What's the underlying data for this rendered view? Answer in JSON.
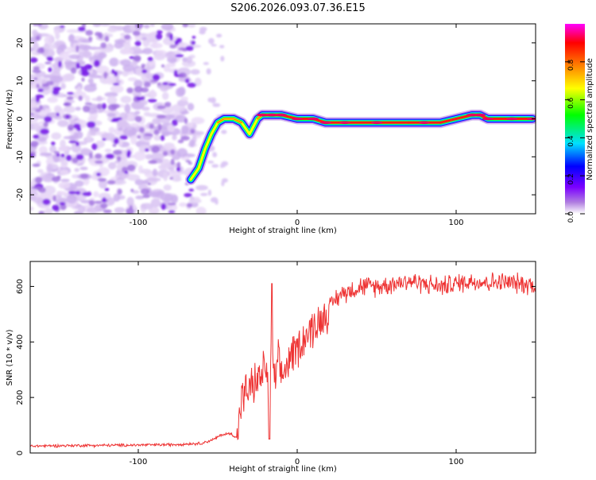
{
  "title": "S206.2026.093.07.36.E15",
  "chart_data": [
    {
      "type": "heatmap",
      "xlabel": "Height of straight line (km)",
      "ylabel": "Frequency (Hz)",
      "xlim": [
        -168,
        150
      ],
      "ylim": [
        -25,
        25
      ],
      "xticks": [
        -100,
        0,
        100
      ],
      "yticks": [
        -20,
        -10,
        0,
        10,
        20
      ],
      "colorbar": {
        "label": "Normalized spectral amplitude",
        "range": [
          0,
          1
        ],
        "ticks": [
          0.0,
          0.2,
          0.4,
          0.6,
          0.8
        ],
        "colors": [
          "#ffffff",
          "#b07ee0",
          "#7b00ff",
          "#0000ff",
          "#00e0ff",
          "#00ff00",
          "#ffff00",
          "#ff8000",
          "#ff0000",
          "#ff00ff"
        ]
      },
      "noise_region": {
        "x": [
          -168,
          -60
        ],
        "y": [
          -25,
          25
        ]
      },
      "ridge": {
        "x": [
          -67,
          -62,
          -58,
          -54,
          -50,
          -46,
          -40,
          -35,
          -30,
          -25,
          -22,
          -16,
          -10,
          0,
          10,
          18,
          30,
          50,
          70,
          80,
          90,
          100,
          110,
          115,
          120,
          135,
          148
        ],
        "y": [
          -16,
          -13,
          -8,
          -4,
          -1,
          0,
          0,
          -1,
          -4,
          0,
          1,
          1,
          1,
          0,
          0,
          -1,
          -1,
          -1,
          -1,
          -1,
          -1,
          0,
          1,
          1,
          0,
          0,
          0
        ],
        "amp": [
          0.45,
          0.45,
          0.4,
          0.45,
          0.6,
          0.7,
          0.65,
          0.5,
          0.4,
          0.6,
          0.8,
          0.85,
          0.8,
          0.85,
          0.85,
          0.8,
          0.8,
          0.8,
          0.75,
          0.8,
          0.75,
          0.75,
          0.8,
          0.85,
          0.85,
          0.85,
          0.85
        ]
      }
    },
    {
      "type": "line",
      "xlabel": "Height of straight line (km)",
      "ylabel": "SNR (10 * v/v)",
      "xlim": [
        -168,
        150
      ],
      "ylim": [
        0,
        690
      ],
      "xticks": [
        -100,
        0,
        100
      ],
      "yticks": [
        0,
        200,
        400,
        600
      ],
      "color": "#ee3333",
      "series": [
        {
          "name": "SNR",
          "x": [
            -168,
            -140,
            -110,
            -80,
            -60,
            -52,
            -48,
            -42,
            -38,
            -35,
            -30,
            -25,
            -22,
            -20,
            -18,
            -16,
            -14,
            -12,
            -10,
            -5,
            0,
            5,
            10,
            15,
            20,
            25,
            30,
            40,
            50,
            60,
            70,
            80,
            90,
            100,
            110,
            120,
            130,
            140,
            150
          ],
          "y": [
            25,
            27,
            28,
            30,
            35,
            50,
            65,
            70,
            55,
            200,
            230,
            260,
            280,
            330,
            200,
            380,
            250,
            330,
            270,
            340,
            380,
            420,
            450,
            480,
            520,
            560,
            580,
            600,
            600,
            610,
            620,
            610,
            600,
            610,
            620,
            615,
            615,
            610,
            605
          ]
        }
      ]
    }
  ]
}
